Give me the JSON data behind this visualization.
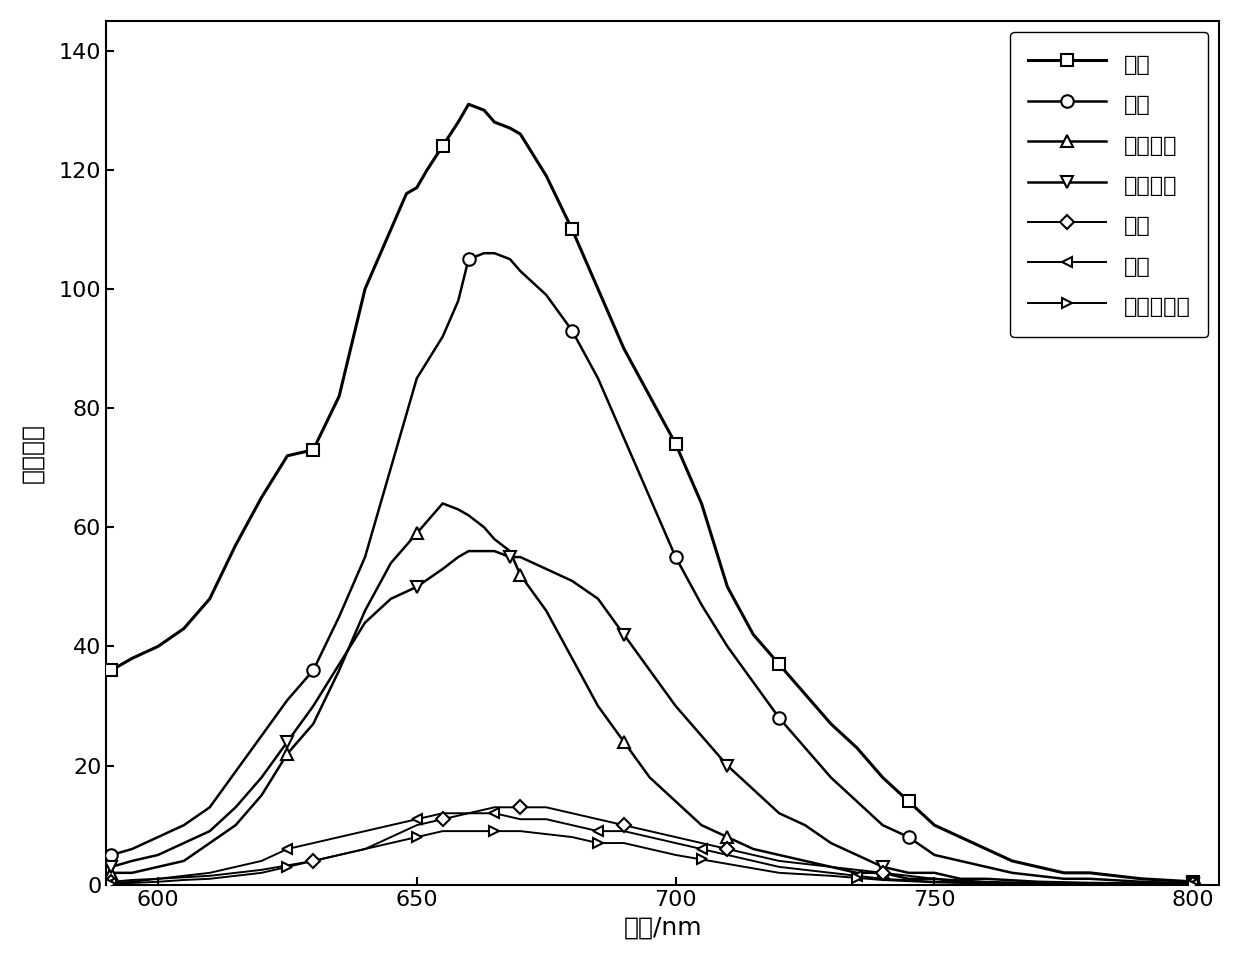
{
  "title": "",
  "xlabel": "波长/nm",
  "ylabel": "荧光发射",
  "xlim": [
    590,
    805
  ],
  "ylim": [
    0,
    145
  ],
  "xticks": [
    600,
    650,
    700,
    750,
    800
  ],
  "yticks": [
    0,
    20,
    40,
    60,
    80,
    100,
    120,
    140
  ],
  "series": [
    {
      "label": "甲苯",
      "marker": "s",
      "marker_size": 9,
      "color": "#000000",
      "linewidth": 2.2,
      "x": [
        591,
        595,
        600,
        605,
        610,
        615,
        620,
        625,
        630,
        635,
        640,
        645,
        648,
        650,
        652,
        655,
        658,
        660,
        663,
        665,
        668,
        670,
        675,
        680,
        685,
        690,
        695,
        700,
        705,
        710,
        715,
        720,
        725,
        730,
        735,
        740,
        745,
        750,
        755,
        760,
        765,
        770,
        775,
        780,
        790,
        800
      ],
      "y": [
        36,
        38,
        40,
        43,
        48,
        57,
        65,
        72,
        73,
        82,
        100,
        110,
        116,
        117,
        120,
        124,
        128,
        131,
        130,
        128,
        127,
        126,
        119,
        110,
        100,
        90,
        82,
        74,
        64,
        50,
        42,
        37,
        32,
        27,
        23,
        18,
        14,
        10,
        8,
        6,
        4,
        3,
        2,
        2,
        1,
        0.5
      ],
      "marker_x": [
        591,
        630,
        655,
        680,
        700,
        720,
        745,
        800
      ]
    },
    {
      "label": "氯仿",
      "marker": "o",
      "marker_size": 9,
      "color": "#000000",
      "linewidth": 1.8,
      "x": [
        591,
        595,
        600,
        605,
        610,
        615,
        620,
        625,
        630,
        635,
        640,
        645,
        650,
        655,
        658,
        660,
        663,
        665,
        668,
        670,
        675,
        680,
        685,
        690,
        695,
        700,
        705,
        710,
        715,
        720,
        725,
        730,
        735,
        740,
        745,
        750,
        755,
        760,
        765,
        770,
        775,
        780,
        790,
        800
      ],
      "y": [
        5,
        6,
        8,
        10,
        13,
        19,
        25,
        31,
        36,
        45,
        55,
        70,
        85,
        92,
        98,
        105,
        106,
        106,
        105,
        103,
        99,
        93,
        85,
        75,
        65,
        55,
        47,
        40,
        34,
        28,
        23,
        18,
        14,
        10,
        8,
        5,
        4,
        3,
        2,
        1.5,
        1,
        1,
        0.5,
        0.2
      ],
      "marker_x": [
        591,
        630,
        660,
        680,
        700,
        720,
        745,
        800
      ]
    },
    {
      "label": "乙酸乙酯",
      "marker": "^",
      "marker_size": 9,
      "color": "#000000",
      "linewidth": 1.8,
      "x": [
        591,
        595,
        600,
        605,
        610,
        615,
        620,
        625,
        630,
        635,
        640,
        645,
        650,
        653,
        655,
        658,
        660,
        663,
        665,
        668,
        670,
        675,
        680,
        685,
        690,
        695,
        700,
        705,
        710,
        715,
        720,
        725,
        730,
        735,
        740,
        745,
        750,
        755,
        760,
        770,
        780,
        800
      ],
      "y": [
        2,
        2,
        3,
        4,
        7,
        10,
        15,
        22,
        27,
        36,
        46,
        54,
        59,
        62,
        64,
        63,
        62,
        60,
        58,
        56,
        52,
        46,
        38,
        30,
        24,
        18,
        14,
        10,
        8,
        6,
        5,
        4,
        3,
        2,
        2,
        1,
        1,
        0.5,
        0.3,
        0.2,
        0.1,
        0.1
      ],
      "marker_x": [
        591,
        625,
        650,
        670,
        690,
        710,
        740,
        800
      ]
    },
    {
      "label": "四氢吵嘎",
      "marker": "v",
      "marker_size": 9,
      "color": "#000000",
      "linewidth": 1.8,
      "x": [
        591,
        595,
        600,
        605,
        610,
        615,
        620,
        625,
        630,
        635,
        640,
        645,
        650,
        655,
        658,
        660,
        663,
        665,
        668,
        670,
        675,
        680,
        685,
        690,
        695,
        700,
        705,
        710,
        715,
        720,
        725,
        730,
        735,
        740,
        745,
        750,
        755,
        760,
        770,
        780,
        800
      ],
      "y": [
        3,
        4,
        5,
        7,
        9,
        13,
        18,
        24,
        30,
        37,
        44,
        48,
        50,
        53,
        55,
        56,
        56,
        56,
        55,
        55,
        53,
        51,
        48,
        42,
        36,
        30,
        25,
        20,
        16,
        12,
        10,
        7,
        5,
        3,
        2,
        2,
        1,
        1,
        0.5,
        0.3,
        0.1
      ],
      "marker_x": [
        591,
        625,
        650,
        668,
        690,
        710,
        740,
        800
      ]
    },
    {
      "label": "甲醇",
      "marker": "D",
      "marker_size": 7,
      "color": "#000000",
      "linewidth": 1.4,
      "x": [
        591,
        595,
        600,
        610,
        620,
        630,
        640,
        645,
        650,
        655,
        660,
        665,
        670,
        675,
        680,
        685,
        690,
        695,
        700,
        710,
        720,
        730,
        740,
        750,
        760,
        770,
        780,
        800
      ],
      "y": [
        0.5,
        0.8,
        1,
        1.5,
        2.5,
        4,
        6,
        8,
        10,
        11,
        12,
        13,
        13,
        13,
        12,
        11,
        10,
        9,
        8,
        6,
        4,
        3,
        2,
        1,
        0.5,
        0.3,
        0.2,
        0.1
      ],
      "marker_x": [
        591,
        630,
        655,
        670,
        690,
        710,
        740,
        800
      ]
    },
    {
      "label": "乙脹",
      "marker": "<",
      "marker_size": 7,
      "color": "#000000",
      "linewidth": 1.4,
      "x": [
        591,
        595,
        600,
        605,
        610,
        615,
        620,
        625,
        630,
        635,
        640,
        645,
        650,
        655,
        660,
        665,
        670,
        675,
        680,
        685,
        690,
        695,
        700,
        710,
        720,
        730,
        740,
        750,
        760,
        770,
        780,
        800
      ],
      "y": [
        0.3,
        0.5,
        1,
        1.5,
        2,
        3,
        4,
        6,
        7,
        8,
        9,
        10,
        11,
        12,
        12,
        12,
        11,
        11,
        10,
        9,
        9,
        8,
        7,
        5,
        3,
        2,
        1,
        0.5,
        0.3,
        0.2,
        0.1,
        0.05
      ],
      "marker_x": [
        591,
        625,
        650,
        665,
        685,
        705,
        735,
        800
      ]
    },
    {
      "label": "二甲基亚砧",
      "marker": ">",
      "marker_size": 7,
      "color": "#000000",
      "linewidth": 1.4,
      "x": [
        591,
        595,
        600,
        605,
        610,
        615,
        620,
        625,
        630,
        635,
        640,
        645,
        650,
        655,
        660,
        665,
        670,
        675,
        680,
        685,
        690,
        695,
        700,
        710,
        720,
        730,
        740,
        750,
        760,
        770,
        780,
        800
      ],
      "y": [
        0.2,
        0.3,
        0.5,
        0.8,
        1,
        1.5,
        2,
        3,
        4,
        5,
        6,
        7,
        8,
        9,
        9,
        9,
        9,
        8.5,
        8,
        7,
        7,
        6,
        5,
        3.5,
        2,
        1.5,
        0.8,
        0.4,
        0.2,
        0.1,
        0.05,
        0.02
      ],
      "marker_x": [
        591,
        625,
        650,
        665,
        685,
        705,
        735,
        800
      ]
    }
  ],
  "background_color": "#ffffff",
  "font_size": 18,
  "tick_fontsize": 16,
  "legend_fontsize": 16
}
